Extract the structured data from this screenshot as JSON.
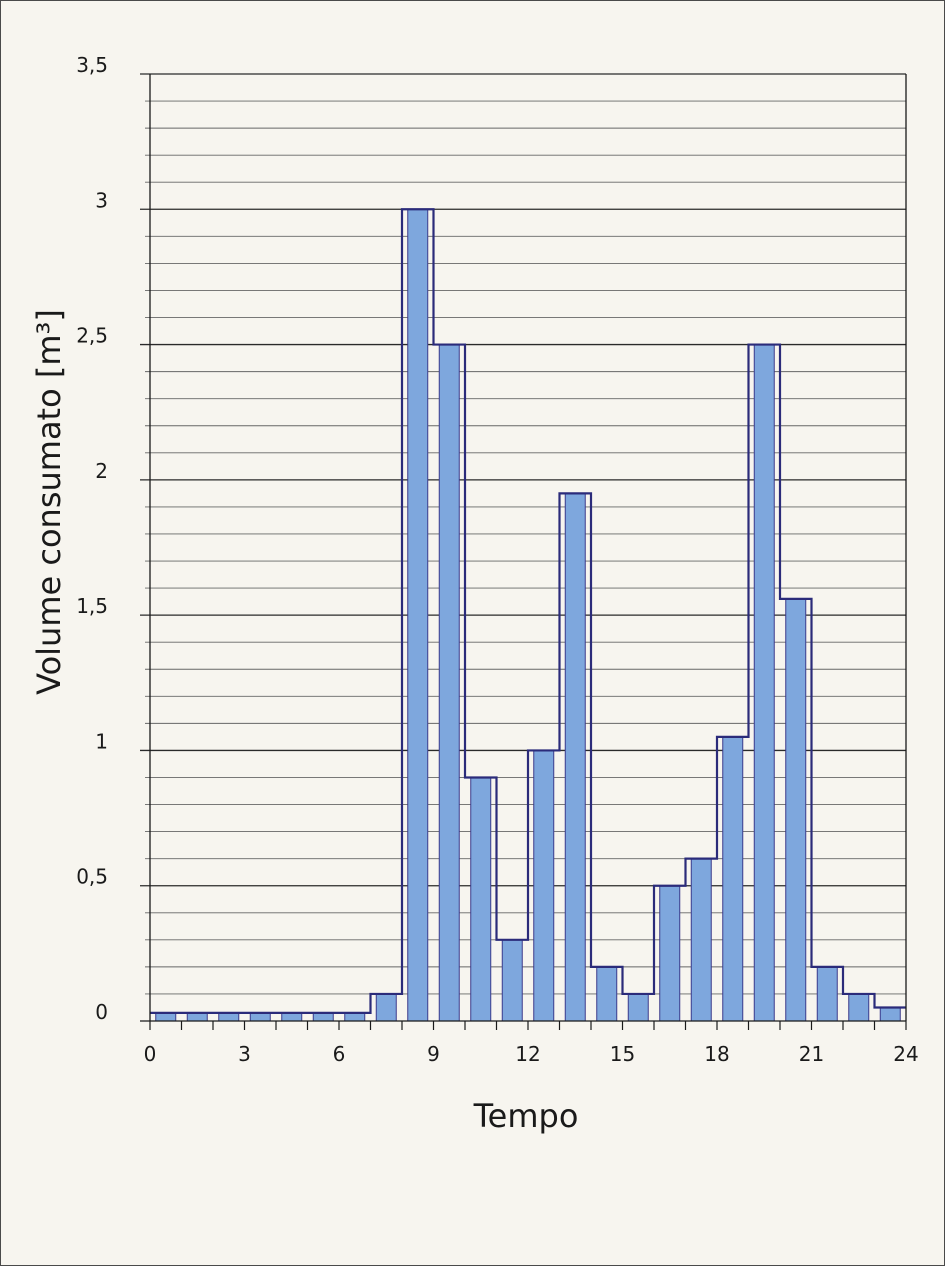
{
  "chart_data": {
    "type": "bar",
    "xlabel": "Tempo",
    "ylabel": "Volume consumato [m³]",
    "xlim": [
      0,
      24
    ],
    "ylim": [
      0,
      3.5
    ],
    "x_ticks": [
      0,
      3,
      6,
      9,
      12,
      15,
      18,
      21,
      24
    ],
    "x_tick_labels": [
      "0",
      "3",
      "6",
      "9",
      "12",
      "15",
      "18",
      "21",
      "24"
    ],
    "y_ticks": [
      0,
      0.5,
      1,
      1.5,
      2,
      2.5,
      3,
      3.5
    ],
    "y_tick_labels": [
      "0",
      "0,5",
      "1",
      "1,5",
      "2",
      "2,5",
      "3",
      "3,5"
    ],
    "grid": true,
    "minor_grid_step": 0.1,
    "bar_color": "#7ea7dd",
    "bar_edge_color": "#3a3a8c",
    "step_line_color": "#2b2b7a",
    "series": [
      {
        "x": [
          1,
          2,
          3,
          4,
          5,
          6,
          7,
          8,
          9,
          10,
          11,
          12,
          13,
          14,
          15,
          16,
          17,
          18,
          19,
          20,
          21,
          22,
          23,
          24
        ],
        "values": [
          0.03,
          0.03,
          0.03,
          0.03,
          0.03,
          0.03,
          0.03,
          0.1,
          3.0,
          2.5,
          0.9,
          0.3,
          1.0,
          1.95,
          0.2,
          0.1,
          0.5,
          0.6,
          1.05,
          2.5,
          1.56,
          0.2,
          0.1,
          0.05
        ]
      }
    ]
  }
}
